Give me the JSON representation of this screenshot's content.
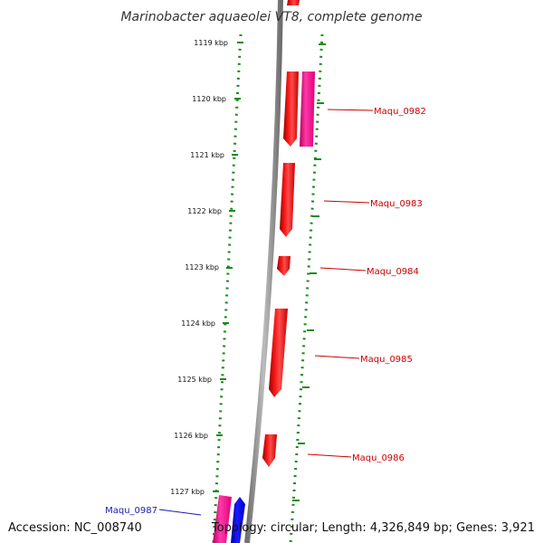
{
  "title": "Marinobacter aquaeolei VT8, complete genome",
  "accession_text": "Accession: NC_008740",
  "topology_text": "Topology: circular; Length: 4,326,849 bp; Genes: 3,921",
  "colors": {
    "forward_cds": "#ee0000",
    "forward_cds_alt": "#ff1a99",
    "reverse_cds": "#0000dd",
    "reverse_cds_light": "#ccccff",
    "backbone": "#888888",
    "tick_dots": "#1a8a1a",
    "label_forward": "#cc0000",
    "label_reverse": "#1a1ab3"
  },
  "ticks": [
    {
      "label": "1119 kbp"
    },
    {
      "label": "1120 kbp"
    },
    {
      "label": "1121 kbp"
    },
    {
      "label": "1122 kbp"
    },
    {
      "label": "1123 kbp"
    },
    {
      "label": "1124 kbp"
    },
    {
      "label": "1125 kbp"
    },
    {
      "label": "1126 kbp"
    },
    {
      "label": "1127 kbp"
    }
  ],
  "gene_labels": [
    {
      "name": "Maqu_0982",
      "strand": "forward"
    },
    {
      "name": "Maqu_0983",
      "strand": "forward"
    },
    {
      "name": "Maqu_0984",
      "strand": "forward"
    },
    {
      "name": "Maqu_0985",
      "strand": "forward"
    },
    {
      "name": "Maqu_0986",
      "strand": "forward"
    },
    {
      "name": "Maqu_0987",
      "strand": "reverse"
    }
  ]
}
